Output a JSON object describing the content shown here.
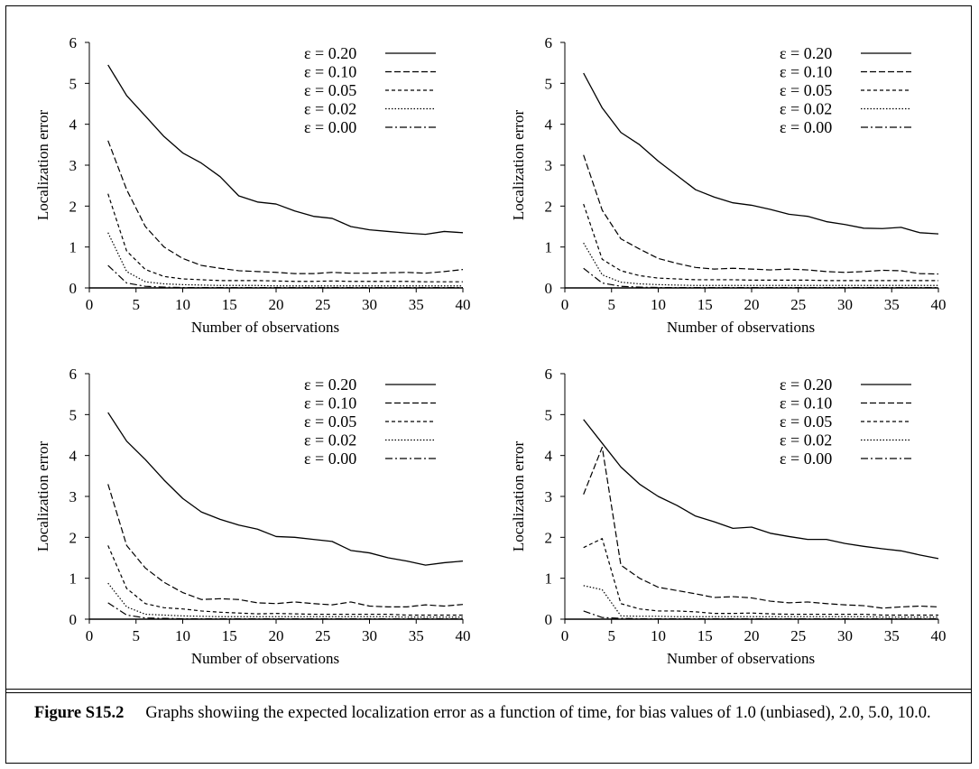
{
  "caption": {
    "label": "Figure S15.2",
    "text": "Graphs showiing the expected localization error as a function of time, for bias values of 1.0 (unbiased), 2.0, 5.0, 10.0."
  },
  "chart_data": [
    {
      "type": "line",
      "panel": "top-left",
      "xlabel": "Number of observations",
      "ylabel": "Localization error",
      "xlim": [
        0,
        40
      ],
      "ylim": [
        0,
        6
      ],
      "xticks": [
        0,
        5,
        10,
        15,
        20,
        25,
        30,
        35,
        40
      ],
      "yticks": [
        0,
        1,
        2,
        3,
        4,
        5,
        6
      ],
      "legend_position": "top-right",
      "x": [
        2,
        4,
        6,
        8,
        10,
        12,
        14,
        16,
        18,
        20,
        22,
        24,
        26,
        28,
        30,
        32,
        34,
        36,
        38,
        40
      ],
      "series": [
        {
          "name": "ε = 0.20",
          "style": "solid",
          "values": [
            5.45,
            4.7,
            4.2,
            3.7,
            3.3,
            3.05,
            2.72,
            2.25,
            2.1,
            2.05,
            1.88,
            1.75,
            1.7,
            1.5,
            1.42,
            1.38,
            1.34,
            1.31,
            1.38,
            1.35
          ]
        },
        {
          "name": "ε = 0.10",
          "style": "dashed",
          "values": [
            3.6,
            2.4,
            1.5,
            1.0,
            0.72,
            0.55,
            0.48,
            0.42,
            0.4,
            0.38,
            0.35,
            0.35,
            0.38,
            0.36,
            0.36,
            0.37,
            0.38,
            0.36,
            0.4,
            0.45
          ]
        },
        {
          "name": "ε = 0.05",
          "style": "short-dashed",
          "values": [
            2.3,
            0.9,
            0.45,
            0.28,
            0.22,
            0.2,
            0.18,
            0.18,
            0.18,
            0.17,
            0.16,
            0.16,
            0.17,
            0.16,
            0.16,
            0.16,
            0.16,
            0.15,
            0.15,
            0.15
          ]
        },
        {
          "name": "ε = 0.02",
          "style": "dotted",
          "values": [
            1.35,
            0.4,
            0.15,
            0.1,
            0.08,
            0.07,
            0.06,
            0.06,
            0.06,
            0.05,
            0.05,
            0.05,
            0.05,
            0.05,
            0.05,
            0.05,
            0.05,
            0.05,
            0.05,
            0.05
          ]
        },
        {
          "name": "ε = 0.00",
          "style": "dash-dot",
          "values": [
            0.55,
            0.12,
            0.04,
            0.02,
            0.01,
            0.01,
            0.01,
            0.01,
            0.01,
            0.01,
            0.01,
            0.01,
            0.01,
            0.01,
            0.01,
            0.01,
            0.01,
            0.01,
            0.01,
            0.01
          ]
        }
      ]
    },
    {
      "type": "line",
      "panel": "top-right",
      "xlabel": "Number of observations",
      "ylabel": "Localization error",
      "xlim": [
        0,
        40
      ],
      "ylim": [
        0,
        6
      ],
      "xticks": [
        0,
        5,
        10,
        15,
        20,
        25,
        30,
        35,
        40
      ],
      "yticks": [
        0,
        1,
        2,
        3,
        4,
        5,
        6
      ],
      "legend_position": "top-right",
      "x": [
        2,
        4,
        6,
        8,
        10,
        12,
        14,
        16,
        18,
        20,
        22,
        24,
        26,
        28,
        30,
        32,
        34,
        36,
        38,
        40
      ],
      "series": [
        {
          "name": "ε = 0.20",
          "style": "solid",
          "values": [
            5.25,
            4.4,
            3.8,
            3.5,
            3.1,
            2.75,
            2.4,
            2.22,
            2.08,
            2.02,
            1.92,
            1.8,
            1.75,
            1.62,
            1.55,
            1.46,
            1.45,
            1.48,
            1.35,
            1.32
          ]
        },
        {
          "name": "ε = 0.10",
          "style": "dashed",
          "values": [
            3.25,
            1.9,
            1.2,
            0.95,
            0.72,
            0.6,
            0.5,
            0.46,
            0.48,
            0.46,
            0.44,
            0.46,
            0.44,
            0.4,
            0.38,
            0.4,
            0.43,
            0.42,
            0.35,
            0.34
          ]
        },
        {
          "name": "ε = 0.05",
          "style": "short-dashed",
          "values": [
            2.05,
            0.7,
            0.42,
            0.3,
            0.24,
            0.22,
            0.2,
            0.2,
            0.2,
            0.19,
            0.19,
            0.19,
            0.19,
            0.18,
            0.18,
            0.18,
            0.18,
            0.18,
            0.18,
            0.18
          ]
        },
        {
          "name": "ε = 0.02",
          "style": "dotted",
          "values": [
            1.1,
            0.32,
            0.14,
            0.1,
            0.08,
            0.07,
            0.06,
            0.06,
            0.06,
            0.06,
            0.06,
            0.06,
            0.06,
            0.06,
            0.06,
            0.06,
            0.06,
            0.06,
            0.06,
            0.06
          ]
        },
        {
          "name": "ε = 0.00",
          "style": "dash-dot",
          "values": [
            0.48,
            0.12,
            0.04,
            0.02,
            0.01,
            0.01,
            0.01,
            0.01,
            0.01,
            0.01,
            0.01,
            0.01,
            0.01,
            0.01,
            0.01,
            0.01,
            0.01,
            0.01,
            0.01,
            0.01
          ]
        }
      ]
    },
    {
      "type": "line",
      "panel": "bottom-left",
      "xlabel": "Number of observations",
      "ylabel": "Localization error",
      "xlim": [
        0,
        40
      ],
      "ylim": [
        0,
        6
      ],
      "xticks": [
        0,
        5,
        10,
        15,
        20,
        25,
        30,
        35,
        40
      ],
      "yticks": [
        0,
        1,
        2,
        3,
        4,
        5,
        6
      ],
      "legend_position": "top-right",
      "x": [
        2,
        4,
        6,
        8,
        10,
        12,
        14,
        16,
        18,
        20,
        22,
        24,
        26,
        28,
        30,
        32,
        34,
        36,
        38,
        40
      ],
      "series": [
        {
          "name": "ε = 0.20",
          "style": "solid",
          "values": [
            5.05,
            4.35,
            3.9,
            3.4,
            2.95,
            2.62,
            2.44,
            2.3,
            2.2,
            2.02,
            2.0,
            1.95,
            1.9,
            1.68,
            1.62,
            1.5,
            1.42,
            1.32,
            1.38,
            1.42
          ]
        },
        {
          "name": "ε = 0.10",
          "style": "dashed",
          "values": [
            3.3,
            1.8,
            1.25,
            0.9,
            0.65,
            0.48,
            0.5,
            0.48,
            0.4,
            0.38,
            0.42,
            0.38,
            0.35,
            0.42,
            0.32,
            0.3,
            0.3,
            0.35,
            0.32,
            0.36
          ]
        },
        {
          "name": "ε = 0.05",
          "style": "short-dashed",
          "values": [
            1.8,
            0.75,
            0.38,
            0.28,
            0.25,
            0.2,
            0.17,
            0.15,
            0.13,
            0.14,
            0.13,
            0.12,
            0.12,
            0.12,
            0.12,
            0.12,
            0.1,
            0.1,
            0.1,
            0.1
          ]
        },
        {
          "name": "ε = 0.02",
          "style": "dotted",
          "values": [
            0.88,
            0.3,
            0.12,
            0.1,
            0.08,
            0.07,
            0.06,
            0.06,
            0.06,
            0.06,
            0.06,
            0.06,
            0.06,
            0.06,
            0.06,
            0.06,
            0.05,
            0.05,
            0.05,
            0.05
          ]
        },
        {
          "name": "ε = 0.00",
          "style": "dash-dot",
          "values": [
            0.4,
            0.1,
            0.03,
            0.02,
            0.01,
            0.01,
            0.01,
            0.01,
            0.01,
            0.01,
            0.01,
            0.01,
            0.01,
            0.01,
            0.01,
            0.01,
            0.01,
            0.01,
            0.01,
            0.01
          ]
        }
      ]
    },
    {
      "type": "line",
      "panel": "bottom-right",
      "xlabel": "Number of observations",
      "ylabel": "Localization error",
      "xlim": [
        0,
        40
      ],
      "ylim": [
        0,
        6
      ],
      "xticks": [
        0,
        5,
        10,
        15,
        20,
        25,
        30,
        35,
        40
      ],
      "yticks": [
        0,
        1,
        2,
        3,
        4,
        5,
        6
      ],
      "legend_position": "top-right",
      "x": [
        2,
        4,
        6,
        8,
        10,
        12,
        14,
        16,
        18,
        20,
        22,
        24,
        26,
        28,
        30,
        32,
        34,
        36,
        38,
        40
      ],
      "series": [
        {
          "name": "ε = 0.20",
          "style": "solid",
          "values": [
            4.88,
            4.3,
            3.72,
            3.3,
            3.0,
            2.78,
            2.52,
            2.38,
            2.22,
            2.25,
            2.1,
            2.02,
            1.95,
            1.95,
            1.85,
            1.78,
            1.72,
            1.67,
            1.57,
            1.48
          ]
        },
        {
          "name": "ε = 0.10",
          "style": "dashed",
          "values": [
            3.05,
            4.2,
            1.32,
            1.0,
            0.78,
            0.7,
            0.62,
            0.53,
            0.55,
            0.52,
            0.44,
            0.4,
            0.42,
            0.38,
            0.35,
            0.33,
            0.27,
            0.3,
            0.32,
            0.3
          ]
        },
        {
          "name": "ε = 0.05",
          "style": "short-dashed",
          "values": [
            1.75,
            1.97,
            0.38,
            0.25,
            0.2,
            0.2,
            0.18,
            0.14,
            0.14,
            0.15,
            0.13,
            0.12,
            0.12,
            0.12,
            0.12,
            0.12,
            0.1,
            0.1,
            0.1,
            0.1
          ]
        },
        {
          "name": "ε = 0.02",
          "style": "dotted",
          "values": [
            0.82,
            0.72,
            0.08,
            0.07,
            0.07,
            0.06,
            0.06,
            0.06,
            0.06,
            0.06,
            0.06,
            0.06,
            0.06,
            0.06,
            0.06,
            0.06,
            0.05,
            0.05,
            0.05,
            0.05
          ]
        },
        {
          "name": "ε = 0.00",
          "style": "dash-dot",
          "values": [
            0.2,
            0.04,
            0.02,
            0.01,
            0.01,
            0.01,
            0.01,
            0.01,
            0.01,
            0.01,
            0.01,
            0.01,
            0.01,
            0.01,
            0.01,
            0.01,
            0.01,
            0.01,
            0.01,
            0.01
          ]
        }
      ]
    }
  ]
}
